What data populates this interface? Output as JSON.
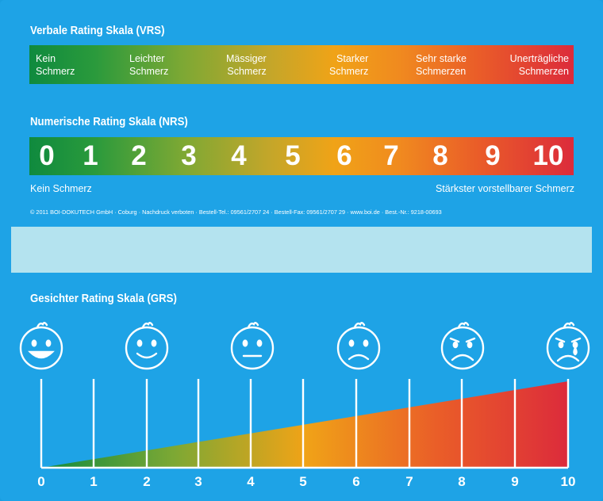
{
  "vrs": {
    "title": "Verbale Rating Skala (VRS)",
    "labels": [
      {
        "line1": "Kein",
        "line2": "Schmerz"
      },
      {
        "line1": "Leichter",
        "line2": "Schmerz"
      },
      {
        "line1": "Mässiger",
        "line2": "Schmerz"
      },
      {
        "line1": "Starker",
        "line2": "Schmerz"
      },
      {
        "line1": "Sehr starke",
        "line2": "Schmerzen"
      },
      {
        "line1": "Unerträgliche",
        "line2": "Schmerzen"
      }
    ]
  },
  "nrs": {
    "title": "Numerische Rating Skala (NRS)",
    "numbers": [
      "0",
      "1",
      "2",
      "3",
      "4",
      "5",
      "6",
      "7",
      "8",
      "9",
      "10"
    ],
    "left_caption": "Kein Schmerz",
    "right_caption": "Stärkster vorstellbarer Schmerz"
  },
  "copyright": "© 2011 BOI-DOKUTECH GmbH · Coburg · Nachdruck verboten · Bestell-Tel.: 09561/2707 24 · Bestell-Fax: 09561/2707 29 · www.boi.de · Best.-Nr.: 9218-00693",
  "grs": {
    "title": "Gesichter Rating Skala (GRS)",
    "faces": [
      "happy-face-icon",
      "smiling-face-icon",
      "neutral-face-icon",
      "sad-face-icon",
      "very-sad-face-icon",
      "crying-face-icon"
    ],
    "numbers": [
      "0",
      "1",
      "2",
      "3",
      "4",
      "5",
      "6",
      "7",
      "8",
      "9",
      "10"
    ]
  },
  "colors": {
    "background": "#1ea3e6",
    "green": "#0f8a3e",
    "yellow": "#f0a317",
    "red": "#dc2b3b"
  }
}
